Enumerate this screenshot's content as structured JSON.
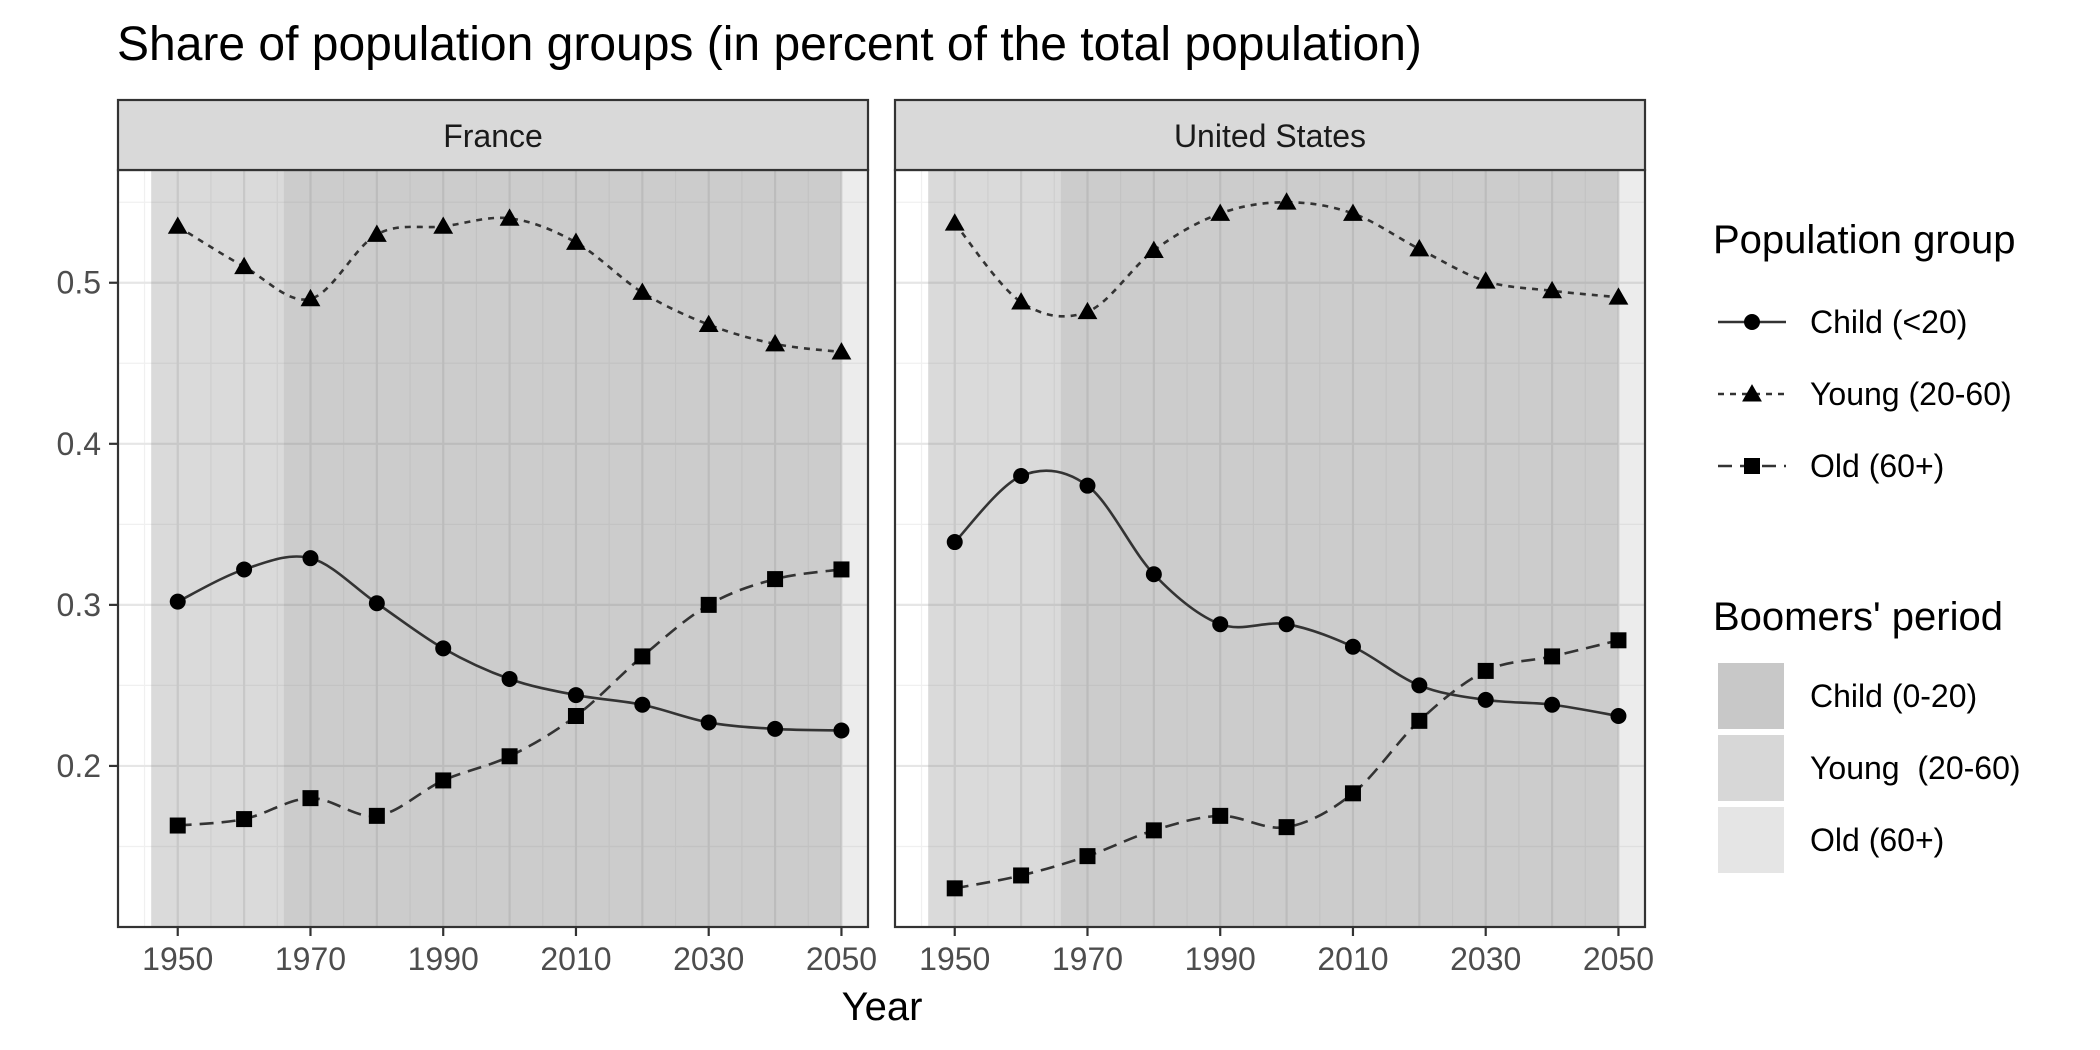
{
  "chart_data": {
    "type": "line",
    "title": "Share of population groups (in percent of the total population)",
    "xlabel": "Year",
    "ylabel": "",
    "xlim": [
      1941,
      2054
    ],
    "ylim": [
      0.1,
      0.57
    ],
    "x_ticks": [
      1950,
      1970,
      1990,
      2010,
      2030,
      2050
    ],
    "y_ticks": [
      0.2,
      0.3,
      0.4,
      0.5
    ],
    "y_tick_labels": [
      "0.2",
      "0.3",
      "0.4",
      "0.5"
    ],
    "grid": true,
    "legend_position": "right",
    "x": [
      1950,
      1960,
      1970,
      1980,
      1990,
      2000,
      2010,
      2020,
      2030,
      2040,
      2050
    ],
    "panels": [
      {
        "name": "France",
        "series": [
          {
            "name": "Child (<20)",
            "marker": "circle",
            "dash": "solid",
            "values": [
              0.302,
              0.322,
              0.329,
              0.301,
              0.273,
              0.254,
              0.244,
              0.238,
              0.227,
              0.223,
              0.222
            ]
          },
          {
            "name": "Young (20-60)",
            "marker": "triangle",
            "dash": "dotted",
            "values": [
              0.535,
              0.51,
              0.49,
              0.53,
              0.535,
              0.54,
              0.525,
              0.494,
              0.474,
              0.462,
              0.457
            ]
          },
          {
            "name": "Old (60+)",
            "marker": "square",
            "dash": "dashed",
            "values": [
              0.163,
              0.167,
              0.18,
              0.169,
              0.191,
              0.206,
              0.231,
              0.268,
              0.3,
              0.316,
              0.322
            ]
          }
        ]
      },
      {
        "name": "United States",
        "series": [
          {
            "name": "Child (<20)",
            "marker": "circle",
            "dash": "solid",
            "values": [
              0.339,
              0.38,
              0.374,
              0.319,
              0.288,
              0.288,
              0.274,
              0.25,
              0.241,
              0.238,
              0.231
            ]
          },
          {
            "name": "Young (20-60)",
            "marker": "triangle",
            "dash": "dotted",
            "values": [
              0.537,
              0.488,
              0.482,
              0.52,
              0.543,
              0.55,
              0.543,
              0.521,
              0.501,
              0.495,
              0.491
            ]
          },
          {
            "name": "Old (60+)",
            "marker": "square",
            "dash": "dashed",
            "values": [
              0.124,
              0.132,
              0.144,
              0.16,
              0.169,
              0.162,
              0.183,
              0.228,
              0.259,
              0.268,
              0.278
            ]
          }
        ]
      }
    ],
    "boomer_periods": [
      {
        "name": "Child (0-20)",
        "range": [
          1946,
          1966
        ],
        "color": "#c8c8c8"
      },
      {
        "name": "Young  (20-60)",
        "range": [
          1966,
          2006
        ],
        "color": "#d7d7d7"
      },
      {
        "name": "Old (60+)",
        "range": [
          2006,
          2050
        ],
        "color": "#e5e5e5"
      }
    ],
    "legend": {
      "population_title": "Population group",
      "boomers_title": "Boomers' period"
    }
  }
}
